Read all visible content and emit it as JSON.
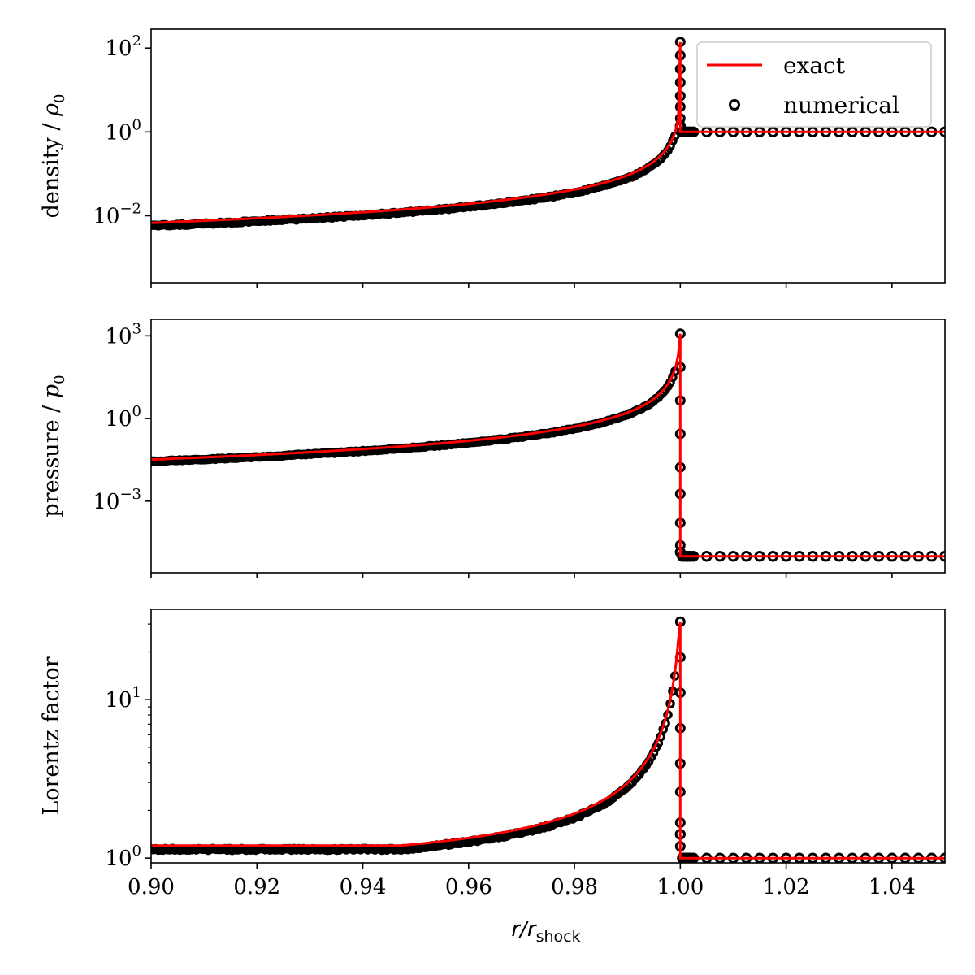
{
  "chart_data": {
    "type": "line",
    "x_axis": {
      "label_main": "r/r",
      "label_sub": "shock",
      "range": [
        0.9,
        1.05
      ],
      "ticks": [
        0.9,
        0.92,
        0.94,
        0.96,
        0.98,
        1.0,
        1.02,
        1.04
      ],
      "tick_labels": [
        "0.90",
        "0.92",
        "0.94",
        "0.96",
        "0.98",
        "1.00",
        "1.02",
        "1.04"
      ]
    },
    "legend": {
      "placement": "top-right of first panel",
      "entries": [
        {
          "label": "exact",
          "kind": "line",
          "color": "#ff0000"
        },
        {
          "label": "numerical",
          "kind": "open-circle",
          "color": "#000000"
        }
      ]
    },
    "panels": [
      {
        "id": "density",
        "ylabel_prefix": "density / ",
        "ylabel_symbol": "ρ",
        "ylabel_sub": "0",
        "yscale": "log",
        "ylim_log10": [
          -3.6,
          2.45
        ],
        "yticks": [
          {
            "base": "10",
            "exp": "−2",
            "log": -2
          },
          {
            "base": "10",
            "exp": "0",
            "log": 0
          },
          {
            "base": "10",
            "exp": "2",
            "log": 2
          }
        ],
        "pre_shock": 1.0,
        "peak": 140,
        "profile": "density",
        "marker_label": "numerical",
        "line_label": "exact"
      },
      {
        "id": "pressure",
        "ylabel_prefix": "pressure / ",
        "ylabel_symbol": "p",
        "ylabel_sub": "0",
        "yscale": "log",
        "ylim_log10": [
          -5.6,
          3.6
        ],
        "yticks": [
          {
            "base": "10",
            "exp": "−3",
            "log": -3
          },
          {
            "base": "10",
            "exp": "0",
            "log": 0
          },
          {
            "base": "10",
            "exp": "3",
            "log": 3
          }
        ],
        "pre_shock": 1e-05,
        "peak": 1200,
        "profile": "pressure",
        "marker_label": "numerical",
        "line_label": "exact"
      },
      {
        "id": "lorentz",
        "ylabel_prefix": "Lorentz factor",
        "ylabel_symbol": "",
        "ylabel_sub": "",
        "yscale": "log",
        "ylim_log10": [
          -0.03,
          1.57
        ],
        "yticks": [
          {
            "base": "10",
            "exp": "0",
            "log": 0
          },
          {
            "base": "10",
            "exp": "1",
            "log": 1
          }
        ],
        "pre_shock": 1.0,
        "peak": 31,
        "profile": "lorentz",
        "marker_label": "numerical",
        "line_label": "exact"
      }
    ],
    "series": [
      {
        "name": "exact",
        "style": "line",
        "color": "#ff0000"
      },
      {
        "name": "numerical",
        "style": "open-circle markers",
        "color": "#000000"
      }
    ],
    "colors": {
      "exact": "#ff0000",
      "numerical": "#000000",
      "axes": "#000000",
      "background": "#ffffff"
    }
  }
}
